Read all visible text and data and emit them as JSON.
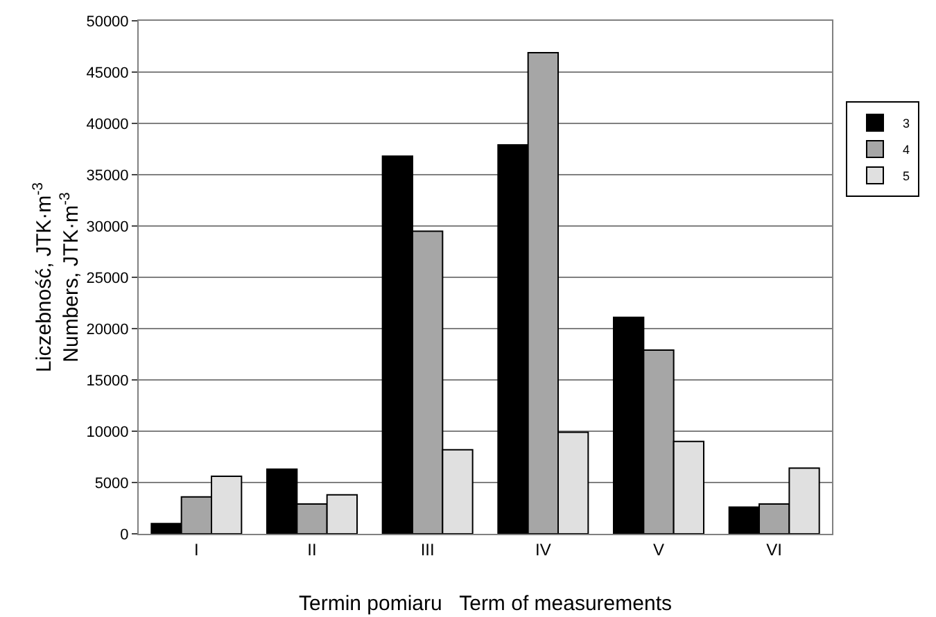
{
  "chart_data": {
    "type": "bar",
    "xlabel": "Termin pomiaru   Term of measurements",
    "ylabel": "Liczebność, JTK·m$^{-3}$\nNumbers, JTK·m$^{-3}$",
    "categories": [
      "I",
      "II",
      "III",
      "IV",
      "V",
      "VI"
    ],
    "series": [
      {
        "name": "3",
        "color": "#000000",
        "values": [
          1000,
          6300,
          36800,
          37900,
          21100,
          2600
        ]
      },
      {
        "name": "4",
        "color": "#a6a6a6",
        "values": [
          3600,
          2900,
          29500,
          46900,
          17900,
          2900
        ]
      },
      {
        "name": "5",
        "color": "#e0e0e0",
        "values": [
          5600,
          3800,
          8200,
          9900,
          9000,
          6400
        ]
      }
    ],
    "ylim": [
      0,
      50000
    ],
    "yticks": [
      0,
      5000,
      10000,
      15000,
      20000,
      25000,
      30000,
      35000,
      40000,
      45000,
      50000
    ],
    "grid": "y",
    "legend": "right"
  }
}
